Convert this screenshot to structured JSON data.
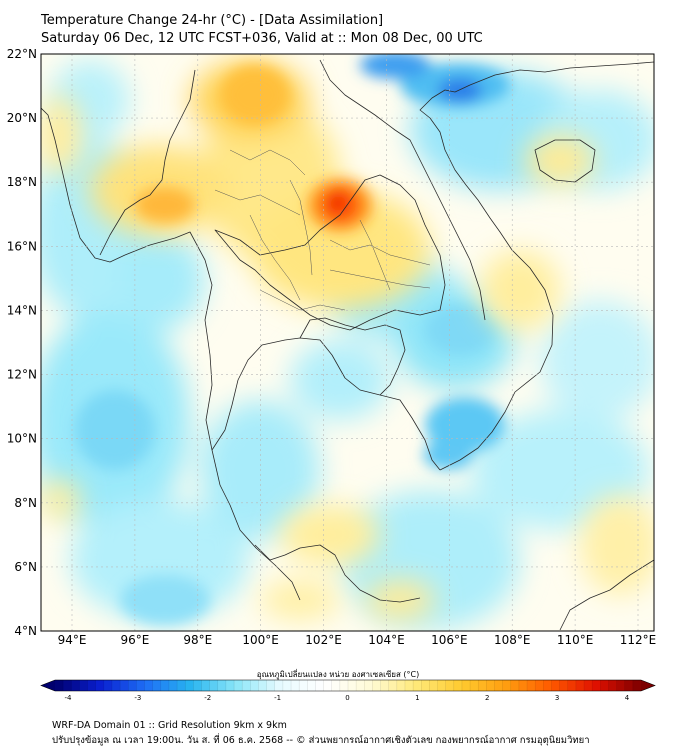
{
  "title_line1": "Temperature Change 24-hr (°C) - [Data Assimilation]",
  "title_line2": "Saturday 06 Dec, 12 UTC FCST+036, Valid at :: Mon 08 Dec, 00 UTC",
  "lat_labels": [
    "22°N",
    "20°N",
    "18°N",
    "16°N",
    "14°N",
    "12°N",
    "10°N",
    "8°N",
    "6°N",
    "4°N"
  ],
  "lon_labels": [
    "94°E",
    "96°E",
    "98°E",
    "100°E",
    "102°E",
    "104°E",
    "106°E",
    "108°E",
    "110°E",
    "112°E"
  ],
  "colorbar": {
    "label": "อุณหภูมิเปลี่ยนแปลง หน่วย องศาเซลเซียส (°C)",
    "ticks": [
      "-4",
      "-3",
      "-2",
      "-1",
      "0",
      "1",
      "2",
      "3",
      "4"
    ],
    "colors": [
      "#00006e",
      "#0a1fd0",
      "#1e6ef5",
      "#28b4f0",
      "#8ae6f8",
      "#e8fbff",
      "#ffffff",
      "#fffbd6",
      "#ffe97a",
      "#ffcb30",
      "#ff9e10",
      "#ff5a00",
      "#e01000",
      "#7d0000"
    ]
  },
  "footer_line1": "WRF-DA Domain 01 :: Grid Resolution 9km x 9km",
  "footer_line2": "ปรับปรุงข้อมูล ณ เวลา 19:00น. วัน ส. ที่ 06 ธ.ค. 2568 -- © ส่วนพยากรณ์อากาศเชิงตัวเลข กองพยากรณ์อากาศ กรมอุตุนิยมวิทยา"
}
